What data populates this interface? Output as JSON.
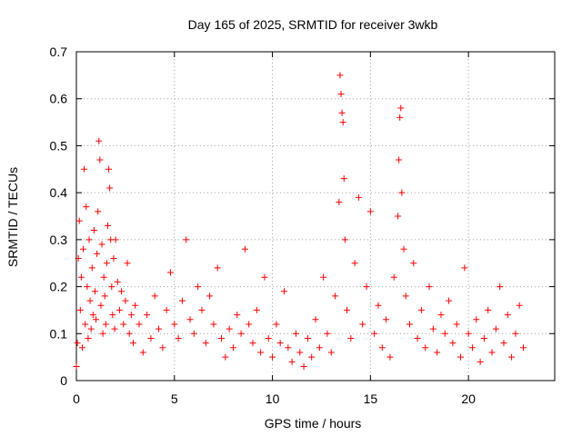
{
  "chart_data": {
    "type": "scatter",
    "title": "Day 165 of 2025, SRMTID for receiver 3wkb",
    "xlabel": "GPS time / hours",
    "ylabel": "SRMTID / TECUs",
    "xlim": [
      0,
      24.4
    ],
    "ylim": [
      0,
      0.7
    ],
    "xticks": [
      0,
      5,
      10,
      15,
      20
    ],
    "yticks": [
      0,
      0.1,
      0.2,
      0.3,
      0.4,
      0.5,
      0.6,
      0.7
    ],
    "xtick_labels": [
      "0",
      "5",
      "10",
      "15",
      "20"
    ],
    "ytick_labels": [
      "0",
      "0.1",
      "0.2",
      "0.3",
      "0.4",
      "0.5",
      "0.6",
      "0.7"
    ],
    "grid": true,
    "marker": "+",
    "color": "#ff0000",
    "series": [
      {
        "name": "SRMTID",
        "points": [
          [
            0.0,
            0.03
          ],
          [
            0.05,
            0.08
          ],
          [
            0.1,
            0.26
          ],
          [
            0.15,
            0.34
          ],
          [
            0.2,
            0.15
          ],
          [
            0.25,
            0.22
          ],
          [
            0.3,
            0.07
          ],
          [
            0.35,
            0.28
          ],
          [
            0.4,
            0.45
          ],
          [
            0.45,
            0.12
          ],
          [
            0.5,
            0.37
          ],
          [
            0.55,
            0.2
          ],
          [
            0.6,
            0.09
          ],
          [
            0.65,
            0.3
          ],
          [
            0.7,
            0.17
          ],
          [
            0.75,
            0.11
          ],
          [
            0.8,
            0.24
          ],
          [
            0.85,
            0.14
          ],
          [
            0.9,
            0.32
          ],
          [
            0.95,
            0.19
          ],
          [
            1.0,
            0.13
          ],
          [
            1.05,
            0.27
          ],
          [
            1.1,
            0.36
          ],
          [
            1.15,
            0.51
          ],
          [
            1.2,
            0.47
          ],
          [
            1.25,
            0.16
          ],
          [
            1.3,
            0.29
          ],
          [
            1.35,
            0.1
          ],
          [
            1.4,
            0.22
          ],
          [
            1.45,
            0.18
          ],
          [
            1.5,
            0.12
          ],
          [
            1.55,
            0.25
          ],
          [
            1.6,
            0.33
          ],
          [
            1.65,
            0.45
          ],
          [
            1.7,
            0.41
          ],
          [
            1.75,
            0.3
          ],
          [
            1.8,
            0.2
          ],
          [
            1.85,
            0.14
          ],
          [
            1.9,
            0.26
          ],
          [
            1.95,
            0.11
          ],
          [
            2.0,
            0.3
          ],
          [
            2.1,
            0.21
          ],
          [
            2.2,
            0.15
          ],
          [
            2.3,
            0.19
          ],
          [
            2.4,
            0.12
          ],
          [
            2.5,
            0.17
          ],
          [
            2.6,
            0.25
          ],
          [
            2.7,
            0.1
          ],
          [
            2.8,
            0.14
          ],
          [
            2.9,
            0.08
          ],
          [
            3.0,
            0.16
          ],
          [
            3.2,
            0.12
          ],
          [
            3.4,
            0.06
          ],
          [
            3.6,
            0.14
          ],
          [
            3.8,
            0.09
          ],
          [
            4.0,
            0.18
          ],
          [
            4.2,
            0.11
          ],
          [
            4.4,
            0.07
          ],
          [
            4.6,
            0.15
          ],
          [
            4.8,
            0.23
          ],
          [
            5.0,
            0.12
          ],
          [
            5.2,
            0.09
          ],
          [
            5.4,
            0.17
          ],
          [
            5.6,
            0.3
          ],
          [
            5.8,
            0.13
          ],
          [
            6.0,
            0.1
          ],
          [
            6.2,
            0.2
          ],
          [
            6.4,
            0.15
          ],
          [
            6.6,
            0.08
          ],
          [
            6.8,
            0.18
          ],
          [
            7.0,
            0.12
          ],
          [
            7.2,
            0.24
          ],
          [
            7.4,
            0.09
          ],
          [
            7.6,
            0.05
          ],
          [
            7.8,
            0.11
          ],
          [
            8.0,
            0.07
          ],
          [
            8.2,
            0.14
          ],
          [
            8.4,
            0.1
          ],
          [
            8.6,
            0.28
          ],
          [
            8.8,
            0.12
          ],
          [
            9.0,
            0.08
          ],
          [
            9.2,
            0.15
          ],
          [
            9.4,
            0.06
          ],
          [
            9.6,
            0.22
          ],
          [
            9.8,
            0.09
          ],
          [
            10.0,
            0.05
          ],
          [
            10.2,
            0.12
          ],
          [
            10.4,
            0.08
          ],
          [
            10.6,
            0.19
          ],
          [
            10.8,
            0.07
          ],
          [
            11.0,
            0.04
          ],
          [
            11.2,
            0.1
          ],
          [
            11.4,
            0.06
          ],
          [
            11.6,
            0.03
          ],
          [
            11.8,
            0.09
          ],
          [
            12.0,
            0.05
          ],
          [
            12.2,
            0.13
          ],
          [
            12.4,
            0.07
          ],
          [
            12.6,
            0.22
          ],
          [
            12.8,
            0.1
          ],
          [
            13.0,
            0.06
          ],
          [
            13.2,
            0.18
          ],
          [
            13.4,
            0.38
          ],
          [
            13.45,
            0.65
          ],
          [
            13.5,
            0.61
          ],
          [
            13.55,
            0.57
          ],
          [
            13.6,
            0.55
          ],
          [
            13.65,
            0.43
          ],
          [
            13.7,
            0.3
          ],
          [
            13.8,
            0.15
          ],
          [
            14.0,
            0.09
          ],
          [
            14.2,
            0.25
          ],
          [
            14.4,
            0.39
          ],
          [
            14.6,
            0.12
          ],
          [
            14.8,
            0.2
          ],
          [
            15.0,
            0.36
          ],
          [
            15.2,
            0.1
          ],
          [
            15.4,
            0.16
          ],
          [
            15.6,
            0.07
          ],
          [
            15.8,
            0.13
          ],
          [
            16.0,
            0.05
          ],
          [
            16.2,
            0.22
          ],
          [
            16.4,
            0.35
          ],
          [
            16.45,
            0.47
          ],
          [
            16.5,
            0.56
          ],
          [
            16.55,
            0.58
          ],
          [
            16.6,
            0.4
          ],
          [
            16.7,
            0.28
          ],
          [
            16.8,
            0.18
          ],
          [
            17.0,
            0.12
          ],
          [
            17.2,
            0.25
          ],
          [
            17.4,
            0.09
          ],
          [
            17.6,
            0.15
          ],
          [
            17.8,
            0.07
          ],
          [
            18.0,
            0.2
          ],
          [
            18.2,
            0.11
          ],
          [
            18.4,
            0.06
          ],
          [
            18.6,
            0.14
          ],
          [
            18.8,
            0.1
          ],
          [
            19.0,
            0.17
          ],
          [
            19.2,
            0.08
          ],
          [
            19.4,
            0.12
          ],
          [
            19.6,
            0.05
          ],
          [
            19.8,
            0.24
          ],
          [
            20.0,
            0.1
          ],
          [
            20.2,
            0.07
          ],
          [
            20.4,
            0.13
          ],
          [
            20.6,
            0.04
          ],
          [
            20.8,
            0.09
          ],
          [
            21.0,
            0.15
          ],
          [
            21.2,
            0.06
          ],
          [
            21.4,
            0.11
          ],
          [
            21.6,
            0.2
          ],
          [
            21.8,
            0.08
          ],
          [
            22.0,
            0.14
          ],
          [
            22.2,
            0.05
          ],
          [
            22.4,
            0.1
          ],
          [
            22.6,
            0.16
          ],
          [
            22.8,
            0.07
          ]
        ]
      }
    ]
  }
}
